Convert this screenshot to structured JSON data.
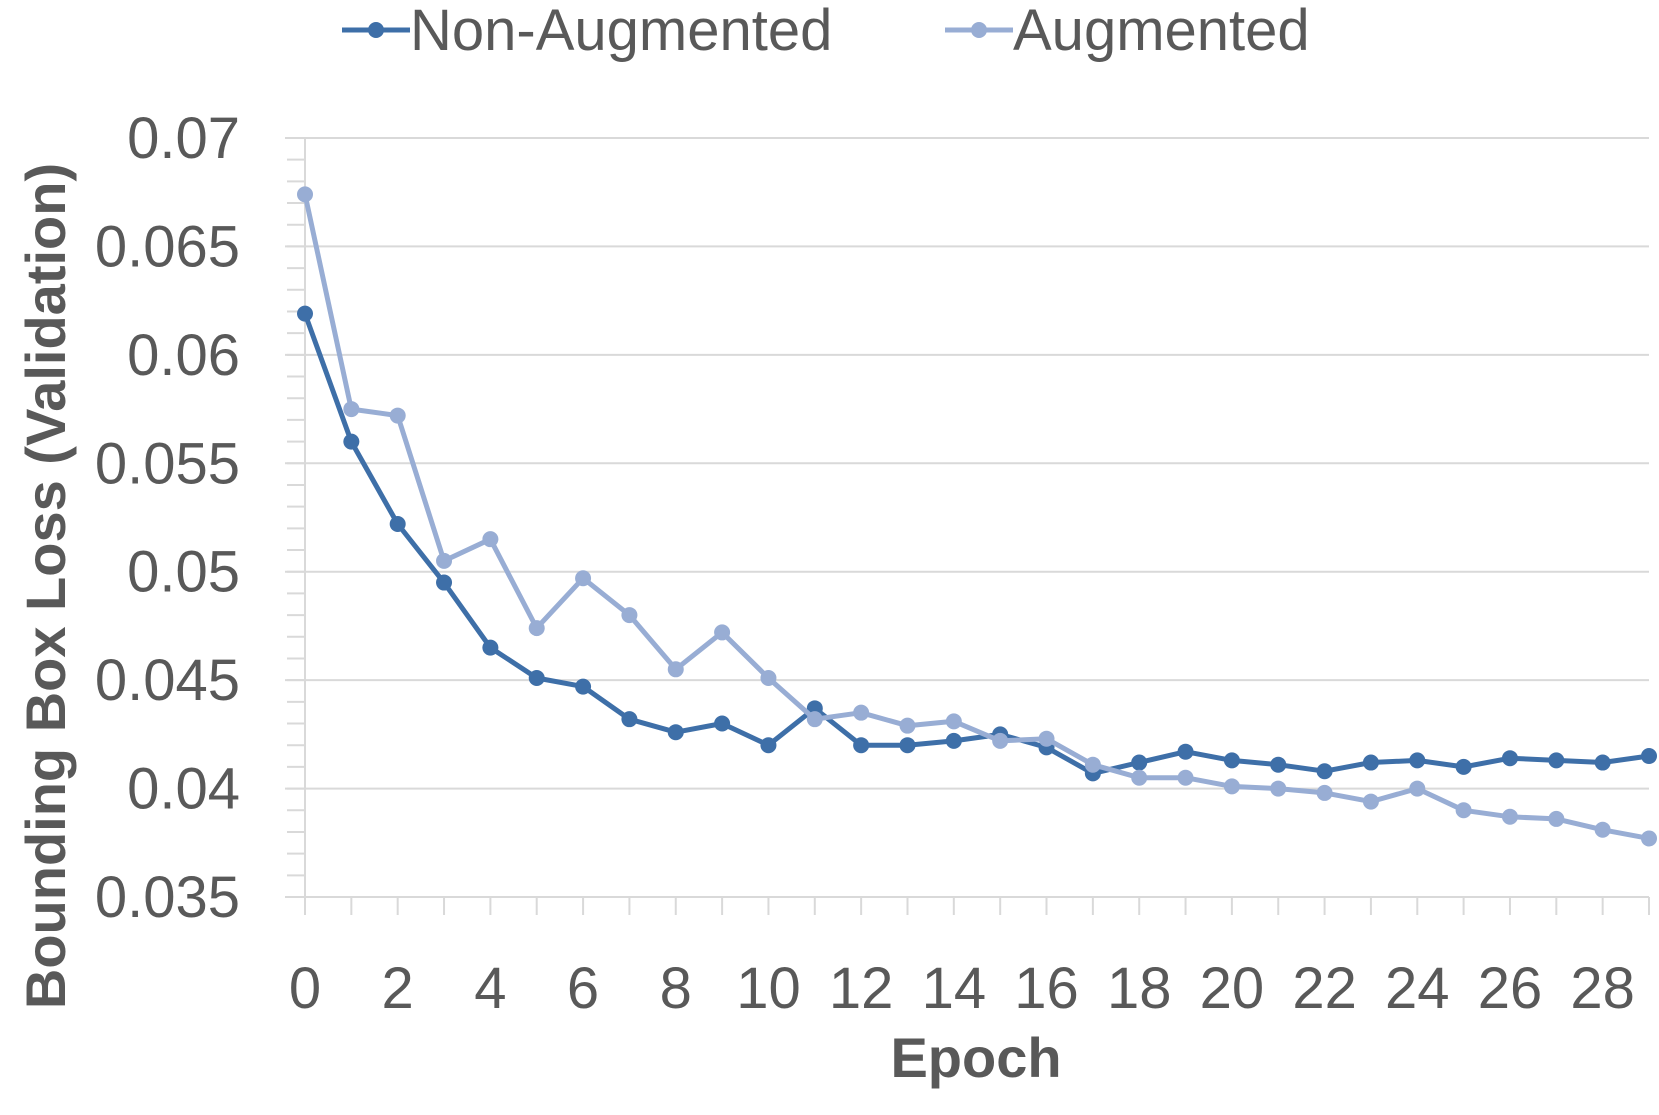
{
  "chart_data": {
    "type": "line",
    "title": "",
    "xlabel": "Epoch",
    "ylabel": "Bounding Box Loss (Validation)",
    "ylim": [
      0.035,
      0.07
    ],
    "y_ticks": [
      "0.035",
      "0.04",
      "0.045",
      "0.05",
      "0.055",
      "0.06",
      "0.065",
      "0.07"
    ],
    "xlim": [
      0,
      29
    ],
    "x_ticks": [
      "0",
      "2",
      "4",
      "6",
      "8",
      "10",
      "12",
      "14",
      "16",
      "18",
      "20",
      "22",
      "24",
      "26",
      "28"
    ],
    "grid": true,
    "legend": "top",
    "x": [
      0,
      1,
      2,
      3,
      4,
      5,
      6,
      7,
      8,
      9,
      10,
      11,
      12,
      13,
      14,
      15,
      16,
      17,
      18,
      19,
      20,
      21,
      22,
      23,
      24,
      25,
      26,
      27,
      28,
      29
    ],
    "series": [
      {
        "name": "Non-Augmented",
        "color": "#3e6fa8",
        "values": [
          0.0619,
          0.056,
          0.0522,
          0.0495,
          0.0465,
          0.0451,
          0.0447,
          0.0432,
          0.0426,
          0.043,
          0.042,
          0.0437,
          0.042,
          0.042,
          0.0422,
          0.0425,
          0.0419,
          0.0407,
          0.0412,
          0.0417,
          0.0413,
          0.0411,
          0.0408,
          0.0412,
          0.0413,
          0.041,
          0.0414,
          0.0413,
          0.0412,
          0.0415
        ]
      },
      {
        "name": "Augmented",
        "color": "#98add4",
        "values": [
          0.0674,
          0.0575,
          0.0572,
          0.0505,
          0.0515,
          0.0474,
          0.0497,
          0.048,
          0.0455,
          0.0472,
          0.0451,
          0.0432,
          0.0435,
          0.0429,
          0.0431,
          0.0422,
          0.0423,
          0.0411,
          0.0405,
          0.0405,
          0.0401,
          0.04,
          0.0398,
          0.0394,
          0.04,
          0.039,
          0.0387,
          0.0386,
          0.0381,
          0.0377
        ]
      }
    ]
  }
}
